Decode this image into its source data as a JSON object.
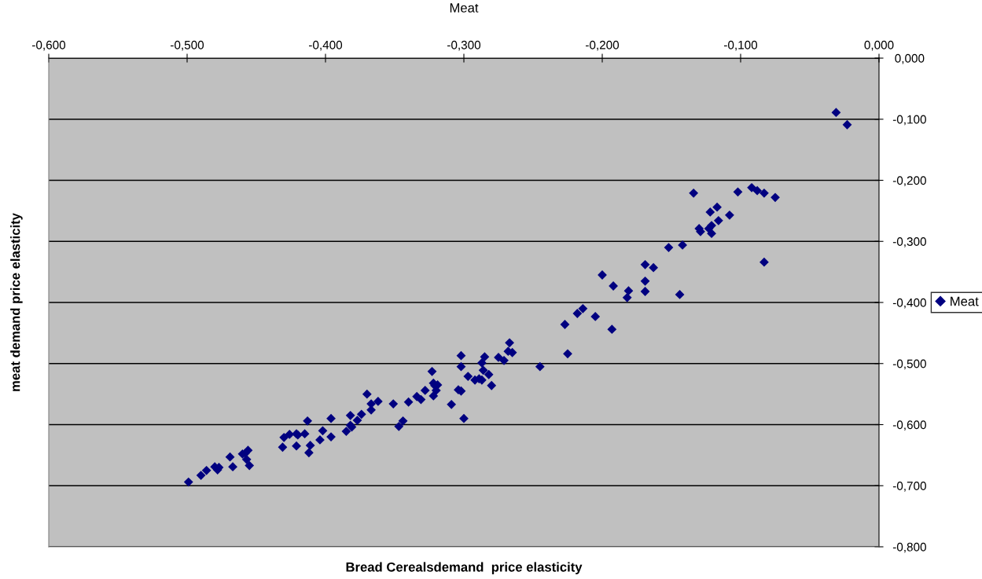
{
  "chart_data": {
    "type": "scatter",
    "title": "Meat",
    "xlabel": "Bread Cerealsdemand  price elasticity",
    "ylabel": "meat demand price elasticity",
    "xlim": [
      -0.6,
      0.0
    ],
    "ylim": [
      -0.8,
      0.0
    ],
    "xticks": [
      {
        "value": -0.6,
        "label": "-0,600"
      },
      {
        "value": -0.5,
        "label": "-0,500"
      },
      {
        "value": -0.4,
        "label": "-0,400"
      },
      {
        "value": -0.3,
        "label": "-0,300"
      },
      {
        "value": -0.2,
        "label": "-0,200"
      },
      {
        "value": -0.1,
        "label": "-0,100"
      },
      {
        "value": 0.0,
        "label": "0,000"
      }
    ],
    "yticks": [
      {
        "value": 0.0,
        "label": "0,000"
      },
      {
        "value": -0.1,
        "label": "-0,100"
      },
      {
        "value": -0.2,
        "label": "-0,200"
      },
      {
        "value": -0.3,
        "label": "-0,300"
      },
      {
        "value": -0.4,
        "label": "-0,400"
      },
      {
        "value": -0.5,
        "label": "-0,500"
      },
      {
        "value": -0.6,
        "label": "-0,600"
      },
      {
        "value": -0.7,
        "label": "-0,700"
      },
      {
        "value": -0.8,
        "label": "-0,800"
      }
    ],
    "grid": "y",
    "legend": "right",
    "marker": "diamond",
    "series": [
      {
        "name": "Meat",
        "color": "#000080",
        "x": [
          -0.499,
          -0.49,
          -0.486,
          -0.48,
          -0.477,
          -0.478,
          -0.469,
          -0.467,
          -0.46,
          -0.456,
          -0.457,
          -0.455,
          -0.458,
          -0.431,
          -0.43,
          -0.426,
          -0.421,
          -0.42,
          -0.415,
          -0.421,
          -0.412,
          -0.411,
          -0.413,
          -0.404,
          -0.402,
          -0.396,
          -0.396,
          -0.385,
          -0.382,
          -0.381,
          -0.382,
          -0.377,
          -0.374,
          -0.37,
          -0.367,
          -0.367,
          -0.362,
          -0.351,
          -0.347,
          -0.344,
          -0.34,
          -0.334,
          -0.331,
          -0.328,
          -0.323,
          -0.322,
          -0.321,
          -0.319,
          -0.32,
          -0.322,
          -0.309,
          -0.304,
          -0.302,
          -0.302,
          -0.302,
          -0.3,
          -0.297,
          -0.292,
          -0.289,
          -0.287,
          -0.286,
          -0.287,
          -0.285,
          -0.282,
          -0.28,
          -0.275,
          -0.271,
          -0.268,
          -0.265,
          -0.267,
          -0.245,
          -0.225,
          -0.227,
          -0.218,
          -0.214,
          -0.205,
          -0.193,
          -0.2,
          -0.192,
          -0.181,
          -0.182,
          -0.169,
          -0.163,
          -0.169,
          -0.169,
          -0.144,
          -0.031,
          -0.023,
          -0.134,
          -0.102,
          -0.092,
          -0.088,
          -0.083,
          -0.075,
          -0.122,
          -0.117,
          -0.108,
          -0.116,
          -0.13,
          -0.129,
          -0.123,
          -0.121,
          -0.121,
          -0.152,
          -0.142,
          -0.083
        ],
        "values": [
          -0.694,
          -0.683,
          -0.675,
          -0.669,
          -0.67,
          -0.674,
          -0.653,
          -0.669,
          -0.648,
          -0.642,
          -0.657,
          -0.667,
          -0.647,
          -0.637,
          -0.621,
          -0.616,
          -0.615,
          -0.617,
          -0.615,
          -0.635,
          -0.646,
          -0.634,
          -0.594,
          -0.625,
          -0.61,
          -0.59,
          -0.62,
          -0.611,
          -0.601,
          -0.604,
          -0.585,
          -0.593,
          -0.583,
          -0.55,
          -0.566,
          -0.576,
          -0.562,
          -0.566,
          -0.603,
          -0.594,
          -0.563,
          -0.554,
          -0.559,
          -0.544,
          -0.513,
          -0.532,
          -0.536,
          -0.535,
          -0.544,
          -0.553,
          -0.567,
          -0.543,
          -0.545,
          -0.487,
          -0.505,
          -0.59,
          -0.521,
          -0.527,
          -0.525,
          -0.527,
          -0.511,
          -0.499,
          -0.489,
          -0.518,
          -0.536,
          -0.49,
          -0.495,
          -0.48,
          -0.482,
          -0.466,
          -0.505,
          -0.484,
          -0.436,
          -0.418,
          -0.41,
          -0.423,
          -0.444,
          -0.355,
          -0.373,
          -0.381,
          -0.392,
          -0.338,
          -0.343,
          -0.365,
          -0.382,
          -0.387,
          -0.089,
          -0.109,
          -0.221,
          -0.219,
          -0.212,
          -0.217,
          -0.221,
          -0.228,
          -0.252,
          -0.244,
          -0.257,
          -0.266,
          -0.279,
          -0.284,
          -0.279,
          -0.274,
          -0.287,
          -0.31,
          -0.306,
          -0.334
        ]
      }
    ]
  }
}
